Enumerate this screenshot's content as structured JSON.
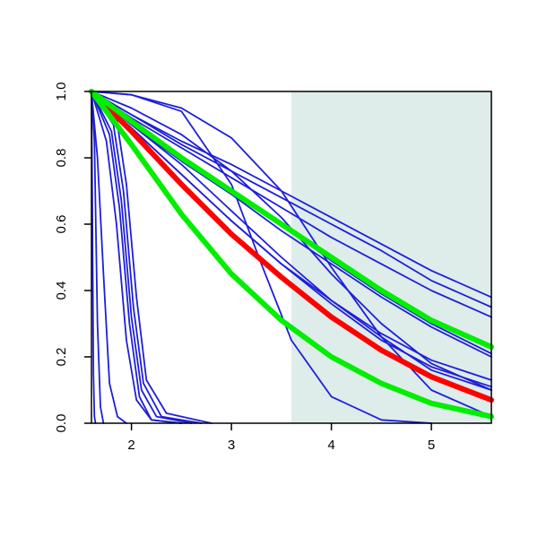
{
  "chart_data": {
    "type": "line",
    "title": "",
    "xlabel": "",
    "ylabel": "",
    "xlim": [
      1.6,
      5.6
    ],
    "ylim": [
      0.0,
      1.0
    ],
    "x_ticks": [
      2,
      3,
      4,
      5
    ],
    "x_tick_labels": [
      "2",
      "3",
      "4",
      "5"
    ],
    "y_ticks": [
      0.0,
      0.2,
      0.4,
      0.6,
      0.8,
      1.0
    ],
    "y_tick_labels": [
      "0.0",
      "0.2",
      "0.4",
      "0.6",
      "0.8",
      "1.0"
    ],
    "grid": false,
    "legend": "none",
    "shaded_region": {
      "x_start": 3.6,
      "x_end": 5.6,
      "color": "#deecea"
    },
    "colors": {
      "blue": "#1f1fd8",
      "red": "#ff0000",
      "green": "#00ee00"
    },
    "series": [
      {
        "color": "blue",
        "x": [
          1.6,
          1.61,
          1.62,
          1.63,
          1.64
        ],
        "y": [
          1.0,
          0.6,
          0.15,
          0.02,
          0.0
        ]
      },
      {
        "color": "blue",
        "x": [
          1.6,
          1.63,
          1.66,
          1.69,
          1.72
        ],
        "y": [
          1.0,
          0.85,
          0.3,
          0.05,
          0.0
        ]
      },
      {
        "color": "blue",
        "x": [
          1.6,
          1.66,
          1.72,
          1.78,
          1.86,
          1.95
        ],
        "y": [
          1.0,
          0.8,
          0.45,
          0.12,
          0.02,
          0.0
        ]
      },
      {
        "color": "blue",
        "x": [
          1.6,
          1.75,
          1.85,
          1.95,
          2.05,
          2.2,
          2.5
        ],
        "y": [
          1.0,
          0.85,
          0.6,
          0.25,
          0.07,
          0.01,
          0.0
        ]
      },
      {
        "color": "blue",
        "x": [
          1.6,
          1.78,
          1.88,
          1.98,
          2.08,
          2.2,
          2.5
        ],
        "y": [
          1.0,
          0.87,
          0.65,
          0.3,
          0.08,
          0.01,
          0.0
        ]
      },
      {
        "color": "blue",
        "x": [
          1.6,
          1.8,
          1.9,
          2.0,
          2.1,
          2.25,
          2.6
        ],
        "y": [
          1.0,
          0.88,
          0.67,
          0.32,
          0.1,
          0.02,
          0.0
        ]
      },
      {
        "color": "blue",
        "x": [
          1.6,
          1.82,
          1.92,
          2.02,
          2.12,
          2.3,
          2.7
        ],
        "y": [
          1.0,
          0.9,
          0.7,
          0.35,
          0.12,
          0.02,
          0.0
        ]
      },
      {
        "color": "blue",
        "x": [
          1.6,
          1.85,
          1.95,
          2.05,
          2.15,
          2.35,
          2.8
        ],
        "y": [
          1.0,
          0.92,
          0.72,
          0.38,
          0.13,
          0.03,
          0.0
        ]
      },
      {
        "color": "blue",
        "x": [
          1.6,
          2.0,
          2.5,
          3.0,
          3.3,
          3.6,
          4.0,
          4.5,
          5.0
        ],
        "y": [
          1.0,
          0.99,
          0.94,
          0.72,
          0.48,
          0.25,
          0.08,
          0.01,
          0.0
        ]
      },
      {
        "color": "blue",
        "x": [
          1.6,
          2.0,
          2.5,
          3.0,
          3.5,
          4.0,
          4.5,
          5.0,
          5.6
        ],
        "y": [
          1.0,
          0.99,
          0.95,
          0.86,
          0.7,
          0.47,
          0.26,
          0.1,
          0.02
        ]
      },
      {
        "color": "blue",
        "x": [
          1.6,
          2.0,
          2.5,
          3.0,
          3.5,
          4.0,
          4.5,
          5.0,
          5.6
        ],
        "y": [
          1.0,
          0.93,
          0.85,
          0.78,
          0.7,
          0.62,
          0.54,
          0.46,
          0.38
        ]
      },
      {
        "color": "blue",
        "x": [
          1.6,
          2.0,
          2.5,
          3.0,
          3.5,
          4.0,
          4.5,
          5.0,
          5.6
        ],
        "y": [
          1.0,
          0.93,
          0.84,
          0.76,
          0.68,
          0.6,
          0.52,
          0.43,
          0.35
        ]
      },
      {
        "color": "blue",
        "x": [
          1.6,
          2.0,
          2.5,
          3.0,
          3.5,
          4.0,
          4.5,
          5.0,
          5.6
        ],
        "y": [
          1.0,
          0.92,
          0.83,
          0.74,
          0.65,
          0.56,
          0.48,
          0.4,
          0.32
        ]
      },
      {
        "color": "blue",
        "x": [
          1.6,
          2.0,
          2.5,
          3.0,
          3.5,
          4.0,
          4.5,
          5.0,
          5.6
        ],
        "y": [
          1.0,
          0.91,
          0.8,
          0.7,
          0.6,
          0.49,
          0.39,
          0.3,
          0.21
        ]
      },
      {
        "color": "blue",
        "x": [
          1.6,
          2.0,
          2.5,
          3.0,
          3.5,
          4.0,
          4.5,
          5.0,
          5.6
        ],
        "y": [
          1.0,
          0.9,
          0.79,
          0.69,
          0.58,
          0.48,
          0.38,
          0.29,
          0.2
        ]
      },
      {
        "color": "blue",
        "x": [
          1.6,
          2.0,
          2.5,
          3.0,
          3.5,
          4.0,
          4.5,
          5.0,
          5.6
        ],
        "y": [
          1.0,
          0.89,
          0.75,
          0.61,
          0.48,
          0.36,
          0.25,
          0.17,
          0.11
        ]
      },
      {
        "color": "blue",
        "x": [
          1.6,
          2.0,
          2.5,
          3.0,
          3.5,
          4.0,
          4.5,
          5.0,
          5.6
        ],
        "y": [
          1.0,
          0.89,
          0.75,
          0.61,
          0.48,
          0.37,
          0.27,
          0.19,
          0.13
        ]
      },
      {
        "color": "blue",
        "x": [
          1.6,
          2.0,
          2.5,
          3.0,
          3.5,
          4.0,
          4.5,
          5.0,
          5.6
        ],
        "y": [
          1.0,
          0.9,
          0.78,
          0.64,
          0.5,
          0.37,
          0.26,
          0.16,
          0.1
        ]
      },
      {
        "color": "blue",
        "x": [
          1.6,
          2.0,
          2.5,
          3.0,
          3.5,
          4.0,
          4.5,
          5.0,
          5.6
        ],
        "y": [
          1.0,
          0.95,
          0.87,
          0.76,
          0.62,
          0.45,
          0.3,
          0.18,
          0.1
        ]
      },
      {
        "color": "red",
        "x": [
          1.6,
          2.0,
          2.5,
          3.0,
          3.5,
          4.0,
          4.5,
          5.0,
          5.6
        ],
        "y": [
          1.0,
          0.88,
          0.72,
          0.57,
          0.44,
          0.32,
          0.22,
          0.14,
          0.07
        ]
      },
      {
        "color": "green",
        "x": [
          1.6,
          2.0,
          2.5,
          3.0,
          3.5,
          4.0,
          4.5,
          5.0,
          5.6
        ],
        "y": [
          1.0,
          0.91,
          0.8,
          0.7,
          0.6,
          0.5,
          0.4,
          0.31,
          0.23
        ]
      },
      {
        "color": "green",
        "x": [
          1.6,
          2.0,
          2.5,
          3.0,
          3.5,
          4.0,
          4.5,
          5.0,
          5.6
        ],
        "y": [
          1.0,
          0.84,
          0.63,
          0.45,
          0.31,
          0.2,
          0.12,
          0.06,
          0.02
        ]
      }
    ]
  }
}
